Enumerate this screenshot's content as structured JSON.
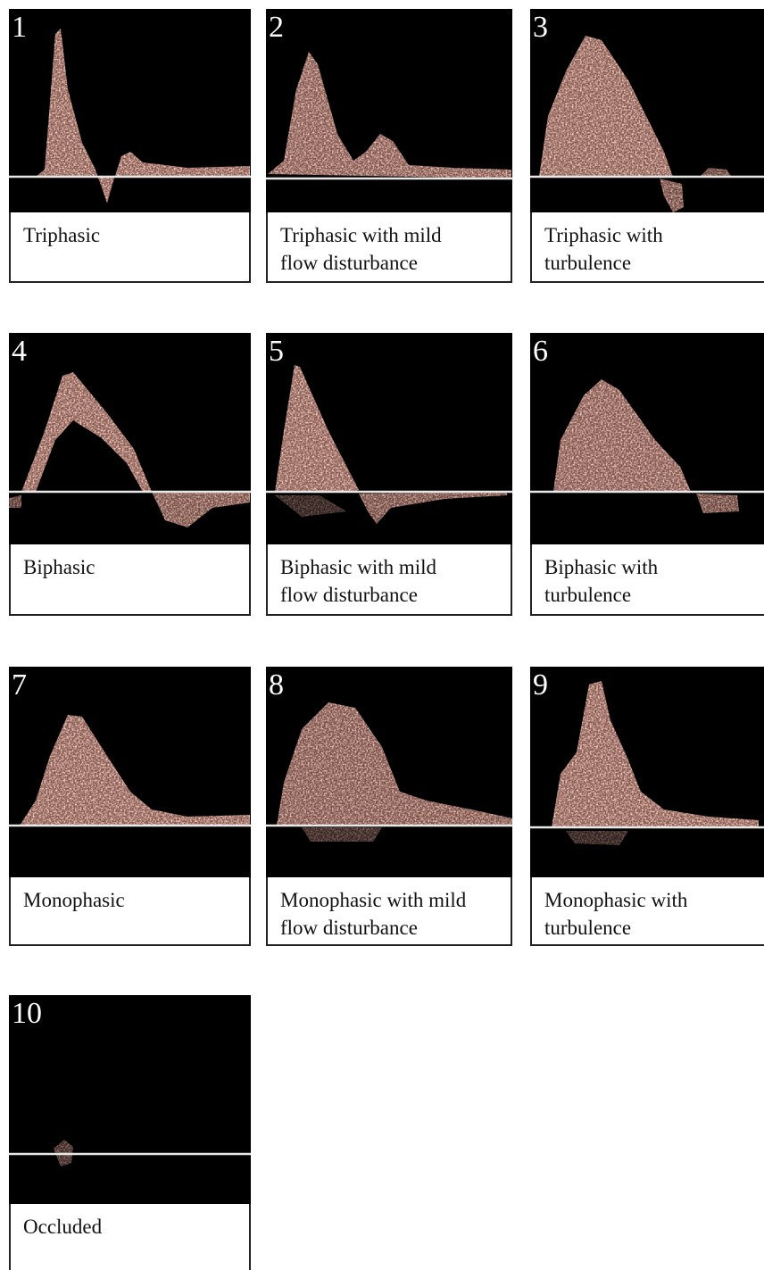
{
  "panels": [
    {
      "number": "1",
      "caption": "Triphasic",
      "shape": "triphasic-sharp"
    },
    {
      "number": "2",
      "caption": "Triphasic with mild\nflow disturbance",
      "shape": "triphasic-mild"
    },
    {
      "number": "3",
      "caption": "Triphasic with\nturbulence",
      "shape": "triphasic-turbulent"
    },
    {
      "number": "4",
      "caption": "Biphasic",
      "shape": "biphasic-band"
    },
    {
      "number": "5",
      "caption": "Biphasic with mild\nflow disturbance",
      "shape": "biphasic-mild"
    },
    {
      "number": "6",
      "caption": "Biphasic with\nturbulence",
      "shape": "biphasic-turbulent"
    },
    {
      "number": "7",
      "caption": "Monophasic",
      "shape": "monophasic-band"
    },
    {
      "number": "8",
      "caption": "Monophasic with mild\nflow disturbance",
      "shape": "monophasic-mild"
    },
    {
      "number": "9",
      "caption": "Monophasic with\nturbulence",
      "shape": "monophasic-turbulent"
    },
    {
      "number": "10",
      "caption": "Occluded",
      "shape": "occluded"
    }
  ],
  "colors": {
    "background": "#000000",
    "signal": "#f0a090",
    "baseline": "#e8e8e8"
  }
}
